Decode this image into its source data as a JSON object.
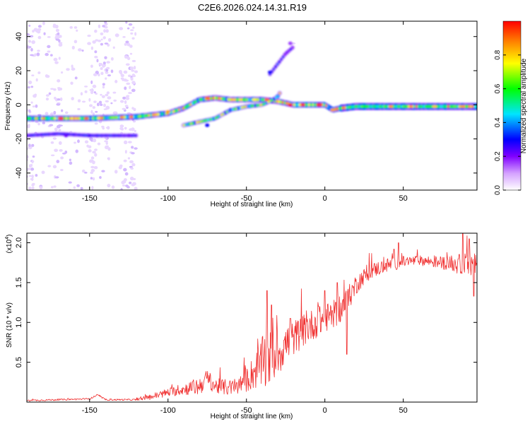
{
  "title": "C2E6.2026.024.14.31.R19",
  "chart_data": [
    {
      "type": "heatmap",
      "name": "spectrogram",
      "xlabel": "Height of straight line (km)",
      "ylabel": "Frequency (Hz)",
      "xlim": [
        -190,
        97
      ],
      "ylim": [
        -50,
        49
      ],
      "xticks": [
        -150,
        -100,
        -50,
        0,
        50
      ],
      "xtick_labels": [
        "-150",
        "-100",
        "-50",
        "0",
        "50"
      ],
      "yticks": [
        -40,
        -20,
        0,
        20,
        40
      ],
      "ytick_labels": [
        "-40",
        "-20",
        "0",
        "20",
        "40"
      ],
      "colorbar": {
        "label": "Normalized spectral amplitude",
        "range": [
          0,
          1
        ],
        "ticks": [
          0.0,
          0.2,
          0.4,
          0.6,
          0.8
        ],
        "tick_labels": [
          "0.0",
          "0.2",
          "0.4",
          "0.6",
          "0.8"
        ],
        "colors": [
          "#ffffff",
          "#9b30ff",
          "#0000ff",
          "#00e5ff",
          "#00ff00",
          "#ffff00",
          "#ff8000",
          "#ff0000"
        ]
      },
      "ridges": [
        {
          "name": "main",
          "points": [
            [
              -190,
              -8
            ],
            [
              -150,
              -8
            ],
            [
              -120,
              -7
            ],
            [
              -100,
              -5
            ],
            [
              -90,
              -2
            ],
            [
              -80,
              3
            ],
            [
              -70,
              4
            ],
            [
              -60,
              3
            ],
            [
              -50,
              3
            ],
            [
              -40,
              3
            ],
            [
              -30,
              2
            ],
            [
              -20,
              0
            ],
            [
              -10,
              0
            ],
            [
              0,
              0
            ],
            [
              5,
              -3
            ],
            [
              10,
              -2
            ],
            [
              20,
              -1
            ],
            [
              50,
              -1
            ],
            [
              97,
              -1
            ]
          ]
        },
        {
          "name": "rising",
          "points": [
            [
              -90,
              -12
            ],
            [
              -70,
              -8
            ],
            [
              -60,
              -3
            ],
            [
              -50,
              -1
            ],
            [
              -40,
              0
            ],
            [
              -33,
              3
            ],
            [
              -30,
              5
            ],
            [
              -28,
              8
            ]
          ]
        },
        {
          "name": "faint-rising",
          "points": [
            [
              -35,
              18
            ],
            [
              -25,
              30
            ],
            [
              -20,
              34
            ]
          ]
        },
        {
          "name": "low-side",
          "points": [
            [
              -190,
              -18
            ],
            [
              -170,
              -17
            ],
            [
              -150,
              -18
            ],
            [
              -130,
              -18
            ],
            [
              -120,
              -18
            ]
          ]
        }
      ]
    },
    {
      "type": "line",
      "name": "snr",
      "xlabel": "Height of straight line (km)",
      "ylabel": "SNR (10 * v/v)",
      "ylabel_scale": "(x10",
      "ylabel_exponent": "4",
      "ylabel_scale_close": ")",
      "xlim": [
        -190,
        97
      ],
      "ylim": [
        0,
        2.12
      ],
      "xticks": [
        -150,
        -100,
        -50,
        0,
        50
      ],
      "xtick_labels": [
        "-150",
        "-100",
        "-50",
        "0",
        "50"
      ],
      "yticks": [
        0.5,
        1.0,
        1.5,
        2.0
      ],
      "ytick_labels": [
        "0.5",
        "1.0",
        "1.5",
        "2.0"
      ],
      "color": "#f03030",
      "trend": [
        [
          -190,
          0.02
        ],
        [
          -170,
          0.03
        ],
        [
          -150,
          0.04
        ],
        [
          -145,
          0.09
        ],
        [
          -140,
          0.03
        ],
        [
          -130,
          0.03
        ],
        [
          -120,
          0.03
        ],
        [
          -110,
          0.07
        ],
        [
          -100,
          0.12
        ],
        [
          -90,
          0.16
        ],
        [
          -80,
          0.2
        ],
        [
          -75,
          0.3
        ],
        [
          -70,
          0.2
        ],
        [
          -60,
          0.18
        ],
        [
          -55,
          0.2
        ],
        [
          -50,
          0.28
        ],
        [
          -45,
          0.38
        ],
        [
          -40,
          0.48
        ],
        [
          -35,
          0.55
        ],
        [
          -30,
          0.62
        ],
        [
          -25,
          0.72
        ],
        [
          -20,
          0.8
        ],
        [
          -15,
          0.88
        ],
        [
          -10,
          0.95
        ],
        [
          -5,
          1.0
        ],
        [
          0,
          1.05
        ],
        [
          5,
          1.1
        ],
        [
          10,
          1.15
        ],
        [
          15,
          1.3
        ],
        [
          20,
          1.48
        ],
        [
          25,
          1.58
        ],
        [
          30,
          1.65
        ],
        [
          40,
          1.72
        ],
        [
          50,
          1.76
        ],
        [
          60,
          1.78
        ],
        [
          70,
          1.76
        ],
        [
          80,
          1.74
        ],
        [
          90,
          1.72
        ],
        [
          97,
          1.72
        ]
      ],
      "noise_amplitude": [
        [
          -190,
          0.01
        ],
        [
          -120,
          0.01
        ],
        [
          -110,
          0.04
        ],
        [
          -90,
          0.07
        ],
        [
          -80,
          0.12
        ],
        [
          -70,
          0.1
        ],
        [
          -55,
          0.1
        ],
        [
          -45,
          0.22
        ],
        [
          -38,
          0.38
        ],
        [
          -30,
          0.3
        ],
        [
          -20,
          0.22
        ],
        [
          0,
          0.18
        ],
        [
          15,
          0.16
        ],
        [
          25,
          0.1
        ],
        [
          40,
          0.09
        ],
        [
          60,
          0.06
        ],
        [
          80,
          0.09
        ],
        [
          90,
          0.16
        ],
        [
          97,
          0.14
        ]
      ],
      "peaks": [
        [
          -37,
          1.4
        ],
        [
          -34,
          1.22
        ],
        [
          -22,
          1.05
        ],
        [
          -4,
          1.2
        ],
        [
          0,
          1.4
        ],
        [
          14,
          0.6
        ],
        [
          8,
          1.5
        ],
        [
          44,
          1.92
        ],
        [
          47,
          2.0
        ],
        [
          88,
          2.12
        ],
        [
          92,
          2.05
        ],
        [
          95,
          1.33
        ]
      ]
    }
  ]
}
